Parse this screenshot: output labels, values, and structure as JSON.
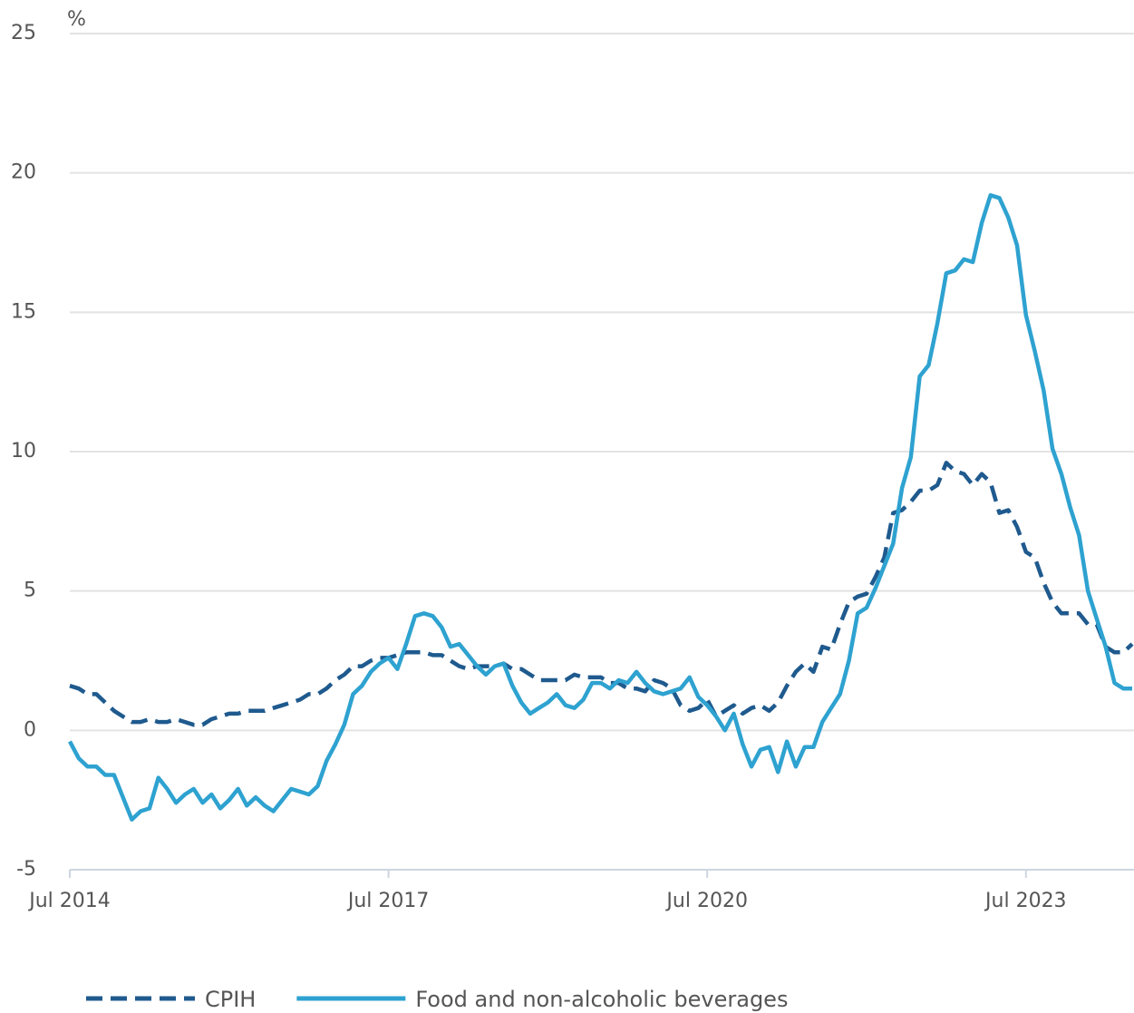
{
  "chart_data": {
    "type": "line",
    "y_label": "%",
    "categories": [
      "Jul 2014",
      null,
      null,
      null,
      null,
      null,
      null,
      null,
      null,
      null,
      null,
      null,
      null,
      null,
      null,
      null,
      null,
      null,
      null,
      null,
      null,
      null,
      null,
      null,
      null,
      null,
      null,
      null,
      null,
      null,
      null,
      null,
      null,
      null,
      null,
      null,
      "Jul 2017",
      null,
      null,
      null,
      null,
      null,
      null,
      null,
      null,
      null,
      null,
      null,
      null,
      null,
      null,
      null,
      null,
      null,
      null,
      null,
      null,
      null,
      null,
      null,
      null,
      null,
      null,
      null,
      null,
      null,
      null,
      null,
      null,
      null,
      null,
      null,
      "Jul 2020",
      null,
      null,
      null,
      null,
      null,
      null,
      null,
      null,
      null,
      null,
      null,
      null,
      null,
      null,
      null,
      null,
      null,
      null,
      null,
      null,
      null,
      null,
      null,
      null,
      null,
      null,
      null,
      null,
      null,
      null,
      null,
      null,
      null,
      null,
      null,
      "Jul 2023",
      null,
      null,
      null,
      null,
      null,
      null,
      null,
      null,
      null,
      null,
      null,
      null
    ],
    "series": [
      {
        "name": "CPIH",
        "color": "#1f5a8e",
        "dashed": true,
        "values": [
          1.6,
          1.5,
          1.3,
          1.3,
          1.0,
          0.7,
          0.5,
          0.3,
          0.3,
          0.4,
          0.3,
          0.3,
          0.4,
          0.3,
          0.2,
          0.2,
          0.4,
          0.5,
          0.6,
          0.6,
          0.7,
          0.7,
          0.7,
          0.8,
          0.9,
          1.0,
          1.1,
          1.3,
          1.3,
          1.5,
          1.8,
          2.0,
          2.3,
          2.3,
          2.5,
          2.6,
          2.6,
          2.7,
          2.8,
          2.8,
          2.8,
          2.7,
          2.7,
          2.5,
          2.3,
          2.2,
          2.3,
          2.3,
          2.3,
          2.4,
          2.2,
          2.2,
          2.0,
          1.8,
          1.8,
          1.8,
          1.8,
          2.0,
          1.9,
          1.9,
          1.9,
          1.7,
          1.7,
          1.5,
          1.5,
          1.4,
          1.8,
          1.7,
          1.5,
          0.9,
          0.7,
          0.8,
          1.1,
          0.5,
          0.7,
          0.9,
          0.6,
          0.8,
          0.9,
          0.7,
          1.0,
          1.6,
          2.1,
          2.4,
          2.1,
          3.0,
          2.9,
          3.8,
          4.6,
          4.8,
          4.9,
          5.5,
          6.2,
          7.8,
          7.9,
          8.2,
          8.6,
          8.6,
          8.8,
          9.6,
          9.3,
          9.2,
          8.8,
          9.2,
          8.9,
          7.8,
          7.9,
          7.3,
          6.4,
          6.2,
          5.3,
          4.6,
          4.2,
          4.2,
          4.2,
          3.8,
          3.8,
          3.0,
          2.8,
          2.8,
          3.1
        ]
      },
      {
        "name": "Food and non-alcoholic beverages",
        "color": "#2ea2d0",
        "dashed": false,
        "values": [
          -0.4,
          -1.0,
          -1.3,
          -1.3,
          -1.6,
          -1.6,
          -2.4,
          -3.2,
          -2.9,
          -2.8,
          -1.7,
          -2.1,
          -2.6,
          -2.3,
          -2.1,
          -2.6,
          -2.3,
          -2.8,
          -2.5,
          -2.1,
          -2.7,
          -2.4,
          -2.7,
          -2.9,
          -2.5,
          -2.1,
          -2.2,
          -2.3,
          -2.0,
          -1.1,
          -0.5,
          0.2,
          1.3,
          1.6,
          2.1,
          2.4,
          2.6,
          2.2,
          3.1,
          4.1,
          4.2,
          4.1,
          3.7,
          3.0,
          3.1,
          2.7,
          2.3,
          2.0,
          2.3,
          2.4,
          1.6,
          1.0,
          0.6,
          0.8,
          1.0,
          1.3,
          0.9,
          0.8,
          1.1,
          1.7,
          1.7,
          1.5,
          1.8,
          1.7,
          2.1,
          1.7,
          1.4,
          1.3,
          1.4,
          1.5,
          1.9,
          1.2,
          0.9,
          0.5,
          0.0,
          0.6,
          -0.5,
          -1.3,
          -0.7,
          -0.6,
          -1.5,
          -0.4,
          -1.3,
          -0.6,
          -0.6,
          0.3,
          0.8,
          1.3,
          2.5,
          4.2,
          4.4,
          5.1,
          5.9,
          6.7,
          8.7,
          9.8,
          12.7,
          13.1,
          14.6,
          16.4,
          16.5,
          16.9,
          16.8,
          18.2,
          19.2,
          19.1,
          18.4,
          17.4,
          14.9,
          13.6,
          12.2,
          10.1,
          9.2,
          8.0,
          7.0,
          5.0,
          4.0,
          3.0,
          1.7,
          1.5,
          1.5
        ]
      }
    ],
    "ylim": [
      -5,
      25
    ],
    "yticks": [
      -5,
      0,
      5,
      10,
      15,
      20,
      25
    ],
    "grid": true,
    "legend": "bottom"
  }
}
